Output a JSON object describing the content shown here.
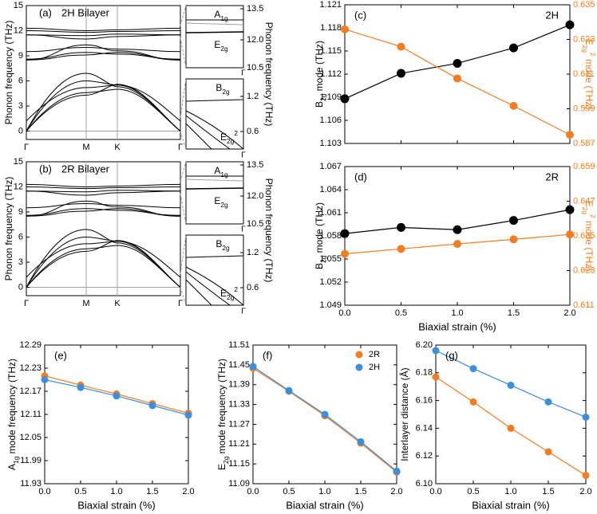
{
  "colors": {
    "black": "#000000",
    "orange": "#f57c23",
    "blue": "#3b8fdc",
    "gray": "#a0a0a0"
  },
  "chart_data": [
    {
      "panel": "(a)",
      "type": "line",
      "title": "2H Bilayer",
      "ylabel": "Phonon frequency (THz)",
      "ylim": [
        -1,
        15
      ],
      "yticks": [
        "0",
        "3",
        "6",
        "9",
        "12",
        "15"
      ],
      "categories": [
        "Γ",
        "M",
        "K",
        "Γ"
      ],
      "inset_ylabel": "Phonon frequency (THz)",
      "inset_top": {
        "yticks": [
          "10.5",
          "12.0",
          "13.5"
        ],
        "labels": [
          "A1g",
          "E2g"
        ],
        "xtick": "Γ"
      },
      "inset_bottom": {
        "yticks": [
          "0.6",
          "1.2"
        ],
        "labels": [
          "B2g",
          "E2g 2"
        ],
        "xtick": "Γ"
      }
    },
    {
      "panel": "(b)",
      "type": "line",
      "title": "2R Bilayer",
      "ylabel": "Phonon frequency (THz)",
      "ylim": [
        -1,
        15
      ],
      "yticks": [
        "0",
        "3",
        "6",
        "9",
        "12",
        "15"
      ],
      "categories": [
        "Γ",
        "M",
        "K",
        "Γ"
      ],
      "inset_ylabel": "Phonon frequency (THz)",
      "inset_top": {
        "yticks": [
          "10.5",
          "12.0",
          "13.5"
        ],
        "labels": [
          "A1g",
          "E2g"
        ],
        "xtick": "Γ"
      },
      "inset_bottom": {
        "yticks": [
          "0.6",
          "1.2"
        ],
        "labels": [
          "B2g",
          "E2g 2"
        ],
        "xtick": "Γ"
      }
    },
    {
      "panel": "(c)",
      "type": "line",
      "label": "2H",
      "x": [
        0,
        0.5,
        1.0,
        1.5,
        2.0
      ],
      "xlim": [
        0,
        2
      ],
      "xticks": [
        "0.0",
        "0.5",
        "1.0",
        "1.5",
        "2.0"
      ],
      "ylabel": "B2g mode (THz)",
      "ylim": [
        1.103,
        1.121
      ],
      "yticks": [
        "1.103",
        "1.106",
        "1.109",
        "1.112",
        "1.115",
        "1.118",
        "1.121"
      ],
      "y2label": "E2g 2 mode (THz)",
      "y2lim": [
        0.587,
        0.635
      ],
      "y2ticks": [
        "0.587",
        "0.599",
        "0.611",
        "0.623",
        "0.635"
      ],
      "series": [
        {
          "values": [
            1.1088,
            1.1121,
            1.1134,
            1.1154,
            1.1184
          ],
          "axis": "left",
          "color": "black"
        },
        {
          "values": [
            0.6265,
            0.6205,
            0.6095,
            0.6,
            0.59
          ],
          "axis": "right",
          "color": "orange"
        }
      ]
    },
    {
      "panel": "(d)",
      "type": "line",
      "label": "2R",
      "x": [
        0,
        0.5,
        1.0,
        1.5,
        2.0
      ],
      "xlim": [
        0,
        2
      ],
      "xticks": [
        "0.0",
        "0.5",
        "1.0",
        "1.5",
        "2.0"
      ],
      "xlabel": "Biaxial strain (%)",
      "ylabel": "B2g mode (THz)",
      "ylim": [
        1.049,
        1.067
      ],
      "yticks": [
        "1.049",
        "1.052",
        "1.055",
        "1.058",
        "1.061",
        "1.064",
        "1.067"
      ],
      "y2label": "E2g 2 mode (THz)",
      "y2lim": [
        0.611,
        0.659
      ],
      "y2ticks": [
        "0.611",
        "0.623",
        "0.635",
        "0.647",
        "0.659"
      ],
      "series": [
        {
          "values": [
            1.0583,
            1.0591,
            1.0588,
            1.06,
            1.0614
          ],
          "axis": "left",
          "color": "black"
        },
        {
          "values": [
            0.6288,
            0.6305,
            0.6322,
            0.6338,
            0.6355
          ],
          "axis": "right",
          "color": "orange"
        }
      ]
    },
    {
      "panel": "(e)",
      "type": "line",
      "x": [
        0,
        0.5,
        1.0,
        1.5,
        2.0
      ],
      "xlim": [
        0,
        2
      ],
      "xticks": [
        "0.0",
        "0.5",
        "1.0",
        "1.5",
        "2.0"
      ],
      "xlabel": "Biaxial strain (%)",
      "ylabel": "A1g mode frequency (THz)",
      "ylim": [
        11.93,
        12.29
      ],
      "yticks": [
        "11.93",
        "11.99",
        "12.05",
        "12.11",
        "12.17",
        "12.23",
        "12.29"
      ],
      "series": [
        {
          "values": [
            12.21,
            12.186,
            12.163,
            12.138,
            12.113
          ],
          "color": "orange"
        },
        {
          "values": [
            12.2,
            12.18,
            12.158,
            12.133,
            12.108
          ],
          "color": "blue"
        }
      ]
    },
    {
      "panel": "(f)",
      "type": "line",
      "x": [
        0,
        0.5,
        1.0,
        1.5,
        2.0
      ],
      "xlim": [
        0,
        2
      ],
      "xticks": [
        "0.0",
        "0.5",
        "1.0",
        "1.5",
        "2.0"
      ],
      "xlabel": "Biaxial strain (%)",
      "ylabel": "E2g mode frequency (THz)",
      "ylim": [
        11.09,
        11.51
      ],
      "yticks": [
        "11.09",
        "11.15",
        "11.21",
        "11.27",
        "11.33",
        "11.39",
        "11.45",
        "11.51"
      ],
      "legend": [
        "2R",
        "2H"
      ],
      "series": [
        {
          "name": "2R",
          "values": [
            11.44,
            11.37,
            11.296,
            11.213,
            11.125
          ],
          "color": "orange"
        },
        {
          "name": "2H",
          "values": [
            11.445,
            11.372,
            11.3,
            11.217,
            11.128
          ],
          "color": "blue"
        }
      ]
    },
    {
      "panel": "(g)",
      "type": "line",
      "x": [
        0,
        0.5,
        1.0,
        1.5,
        2.0
      ],
      "xlim": [
        0,
        2
      ],
      "xticks": [
        "0.0",
        "0.5",
        "1.0",
        "1.5",
        "2.0"
      ],
      "xlabel": "Biaxial strain (%)",
      "ylabel": "Interlayer distance (Å)",
      "ylim": [
        6.1,
        6.2
      ],
      "yticks": [
        "6.10",
        "6.12",
        "6.14",
        "6.16",
        "6.18",
        "6.20"
      ],
      "series": [
        {
          "values": [
            6.177,
            6.159,
            6.14,
            6.123,
            6.106
          ],
          "color": "orange"
        },
        {
          "values": [
            6.196,
            6.183,
            6.171,
            6.159,
            6.148
          ],
          "color": "blue"
        }
      ]
    }
  ]
}
